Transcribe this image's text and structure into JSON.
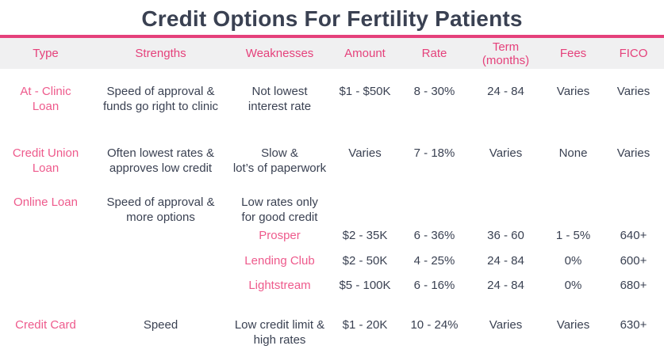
{
  "title": "Credit Options For Fertility Patients",
  "colors": {
    "accent_pink": "#e5417b",
    "label_pink": "#ee5a8c",
    "header_bg": "#f0f0f1",
    "text_dark": "#3a4152"
  },
  "table": {
    "columns": [
      "Type",
      "Strengths",
      "Weaknesses",
      "Amount",
      "Rate",
      "Term\n(months)",
      "Fees",
      "FICO"
    ],
    "rows": [
      {
        "type": "At - Clinic\nLoan",
        "strengths": "Speed of approval &\nfunds go right to clinic",
        "weaknesses": "Not lowest\ninterest rate",
        "amount": "$1 - $50K",
        "rate": "8 - 30%",
        "term": "24 - 84",
        "fees": "Varies",
        "fico": "Varies"
      },
      {
        "type": "Credit Union\nLoan",
        "strengths": "Often lowest rates &\napproves low credit",
        "weaknesses": "Slow &\nlot’s of paperwork",
        "amount": "Varies",
        "rate": "7 - 18%",
        "term": "Varies",
        "fees": "None",
        "fico": "Varies"
      },
      {
        "type": "Online Loan",
        "strengths": "Speed of approval &\nmore options",
        "weaknesses": "Low rates only\nfor good credit"
      },
      {
        "type": "Credit Card",
        "strengths": "Speed",
        "weaknesses": "Low credit limit &\nhigh rates",
        "amount": "$1 - 20K",
        "rate": "10 - 24%",
        "term": "Varies",
        "fees": "Varies",
        "fico": "630+"
      }
    ],
    "online_lenders": [
      {
        "name": "Prosper",
        "amount": "$2 - 35K",
        "rate": "6 - 36%",
        "term": "36 - 60",
        "fees": "1 - 5%",
        "fico": "640+"
      },
      {
        "name": "Lending Club",
        "amount": "$2 - 50K",
        "rate": "4 - 25%",
        "term": "24 - 84",
        "fees": "0%",
        "fico": "600+"
      },
      {
        "name": "Lightstream",
        "amount": "$5 - 100K",
        "rate": "6 - 16%",
        "term": "24 - 84",
        "fees": "0%",
        "fico": "680+"
      }
    ]
  }
}
